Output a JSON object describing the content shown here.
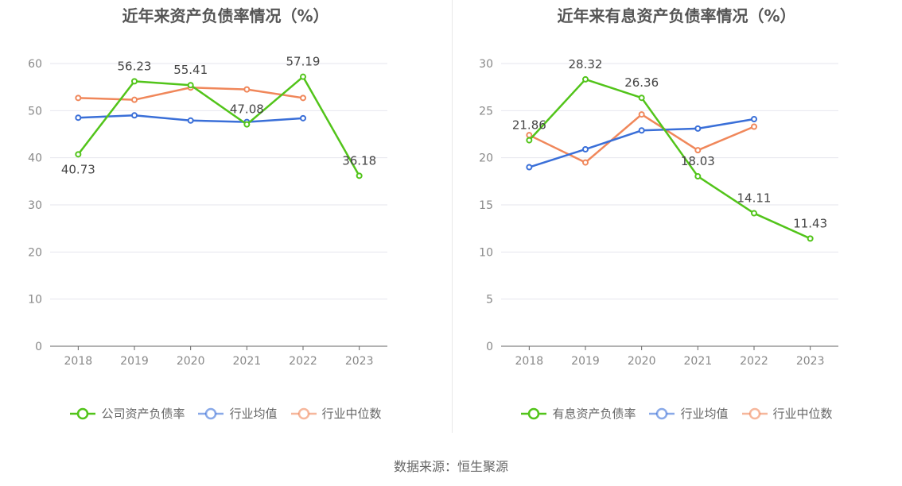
{
  "source_text": "数据来源：恒生聚源",
  "chart_data": [
    {
      "type": "line",
      "title": "近年来资产负债率情况（%）",
      "x": [
        "2018",
        "2019",
        "2020",
        "2021",
        "2022",
        "2023"
      ],
      "ylim": [
        0,
        60
      ],
      "yticks": [
        0,
        10,
        20,
        30,
        40,
        50,
        60
      ],
      "grid": true,
      "legend_position": "bottom",
      "series": [
        {
          "name": "公司资产负债率",
          "color": "#52c41a",
          "values": [
            40.73,
            56.23,
            55.41,
            47.08,
            57.19,
            36.18
          ],
          "labels": [
            "40.73",
            "56.23",
            "55.41",
            "47.08",
            "57.19",
            "36.18"
          ]
        },
        {
          "name": "行业均值",
          "color": "#3a6fd8",
          "values": [
            48.5,
            49.0,
            47.9,
            47.6,
            48.4,
            null
          ]
        },
        {
          "name": "行业中位数",
          "color": "#f0875a",
          "values": [
            52.7,
            52.3,
            54.9,
            54.5,
            52.7,
            null
          ]
        }
      ]
    },
    {
      "type": "line",
      "title": "近年来有息资产负债率情况（%）",
      "x": [
        "2018",
        "2019",
        "2020",
        "2021",
        "2022",
        "2023"
      ],
      "ylim": [
        0,
        30
      ],
      "yticks": [
        0,
        5,
        10,
        15,
        20,
        25,
        30
      ],
      "grid": true,
      "legend_position": "bottom",
      "series": [
        {
          "name": "有息资产负债率",
          "color": "#52c41a",
          "values": [
            21.86,
            28.32,
            26.36,
            18.03,
            14.11,
            11.43
          ],
          "labels": [
            "21.86",
            "28.32",
            "26.36",
            "18.03",
            "14.11",
            "11.43"
          ]
        },
        {
          "name": "行业均值",
          "color": "#3a6fd8",
          "values": [
            19.0,
            20.9,
            22.9,
            23.1,
            24.1,
            null
          ]
        },
        {
          "name": "行业中位数",
          "color": "#f0875a",
          "values": [
            22.4,
            19.5,
            24.6,
            20.8,
            23.3,
            null
          ]
        }
      ]
    }
  ]
}
